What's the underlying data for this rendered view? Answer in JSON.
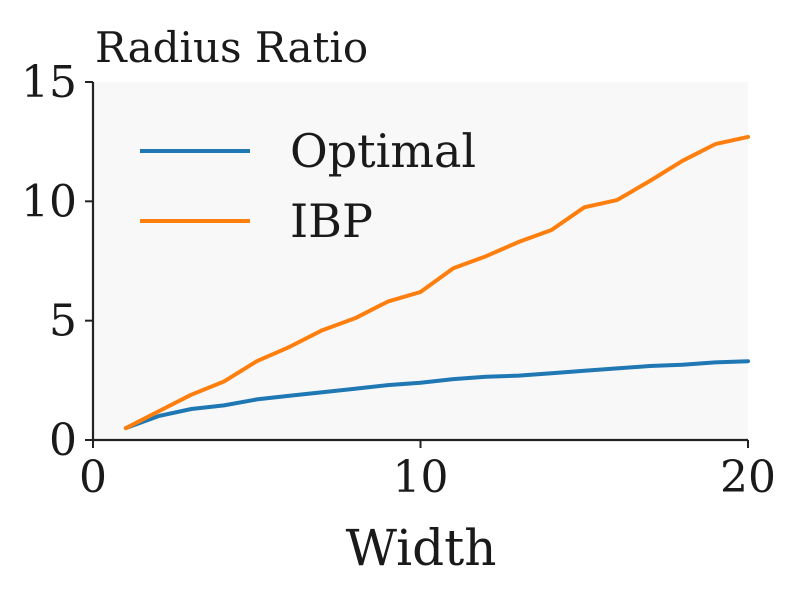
{
  "chart_data": {
    "type": "line",
    "title": "Radius Ratio",
    "xlabel": "Width",
    "ylabel": "",
    "xlim": [
      0,
      20
    ],
    "ylim": [
      0,
      15
    ],
    "xticks": [
      "0",
      "10",
      "20"
    ],
    "yticks": [
      "0",
      "5",
      "10",
      "15"
    ],
    "grid": false,
    "legend": "upper-left",
    "background": "#f8f8f8",
    "x": [
      1,
      2,
      3,
      4,
      5,
      6,
      7,
      8,
      9,
      10,
      11,
      12,
      13,
      14,
      15,
      16,
      17,
      18,
      19,
      20
    ],
    "series": [
      {
        "name": "Optimal",
        "color": "#1f77b4",
        "values": [
          0.5,
          1.0,
          1.3,
          1.45,
          1.7,
          1.85,
          2.0,
          2.15,
          2.3,
          2.4,
          2.55,
          2.65,
          2.7,
          2.8,
          2.9,
          3.0,
          3.1,
          3.15,
          3.25,
          3.3
        ]
      },
      {
        "name": "IBP",
        "color": "#ff7f0e",
        "values": [
          0.5,
          1.2,
          1.9,
          2.45,
          3.3,
          3.9,
          4.6,
          5.1,
          5.8,
          6.2,
          7.2,
          7.7,
          8.3,
          8.8,
          9.75,
          10.05,
          10.85,
          11.7,
          12.4,
          12.7
        ]
      }
    ]
  }
}
